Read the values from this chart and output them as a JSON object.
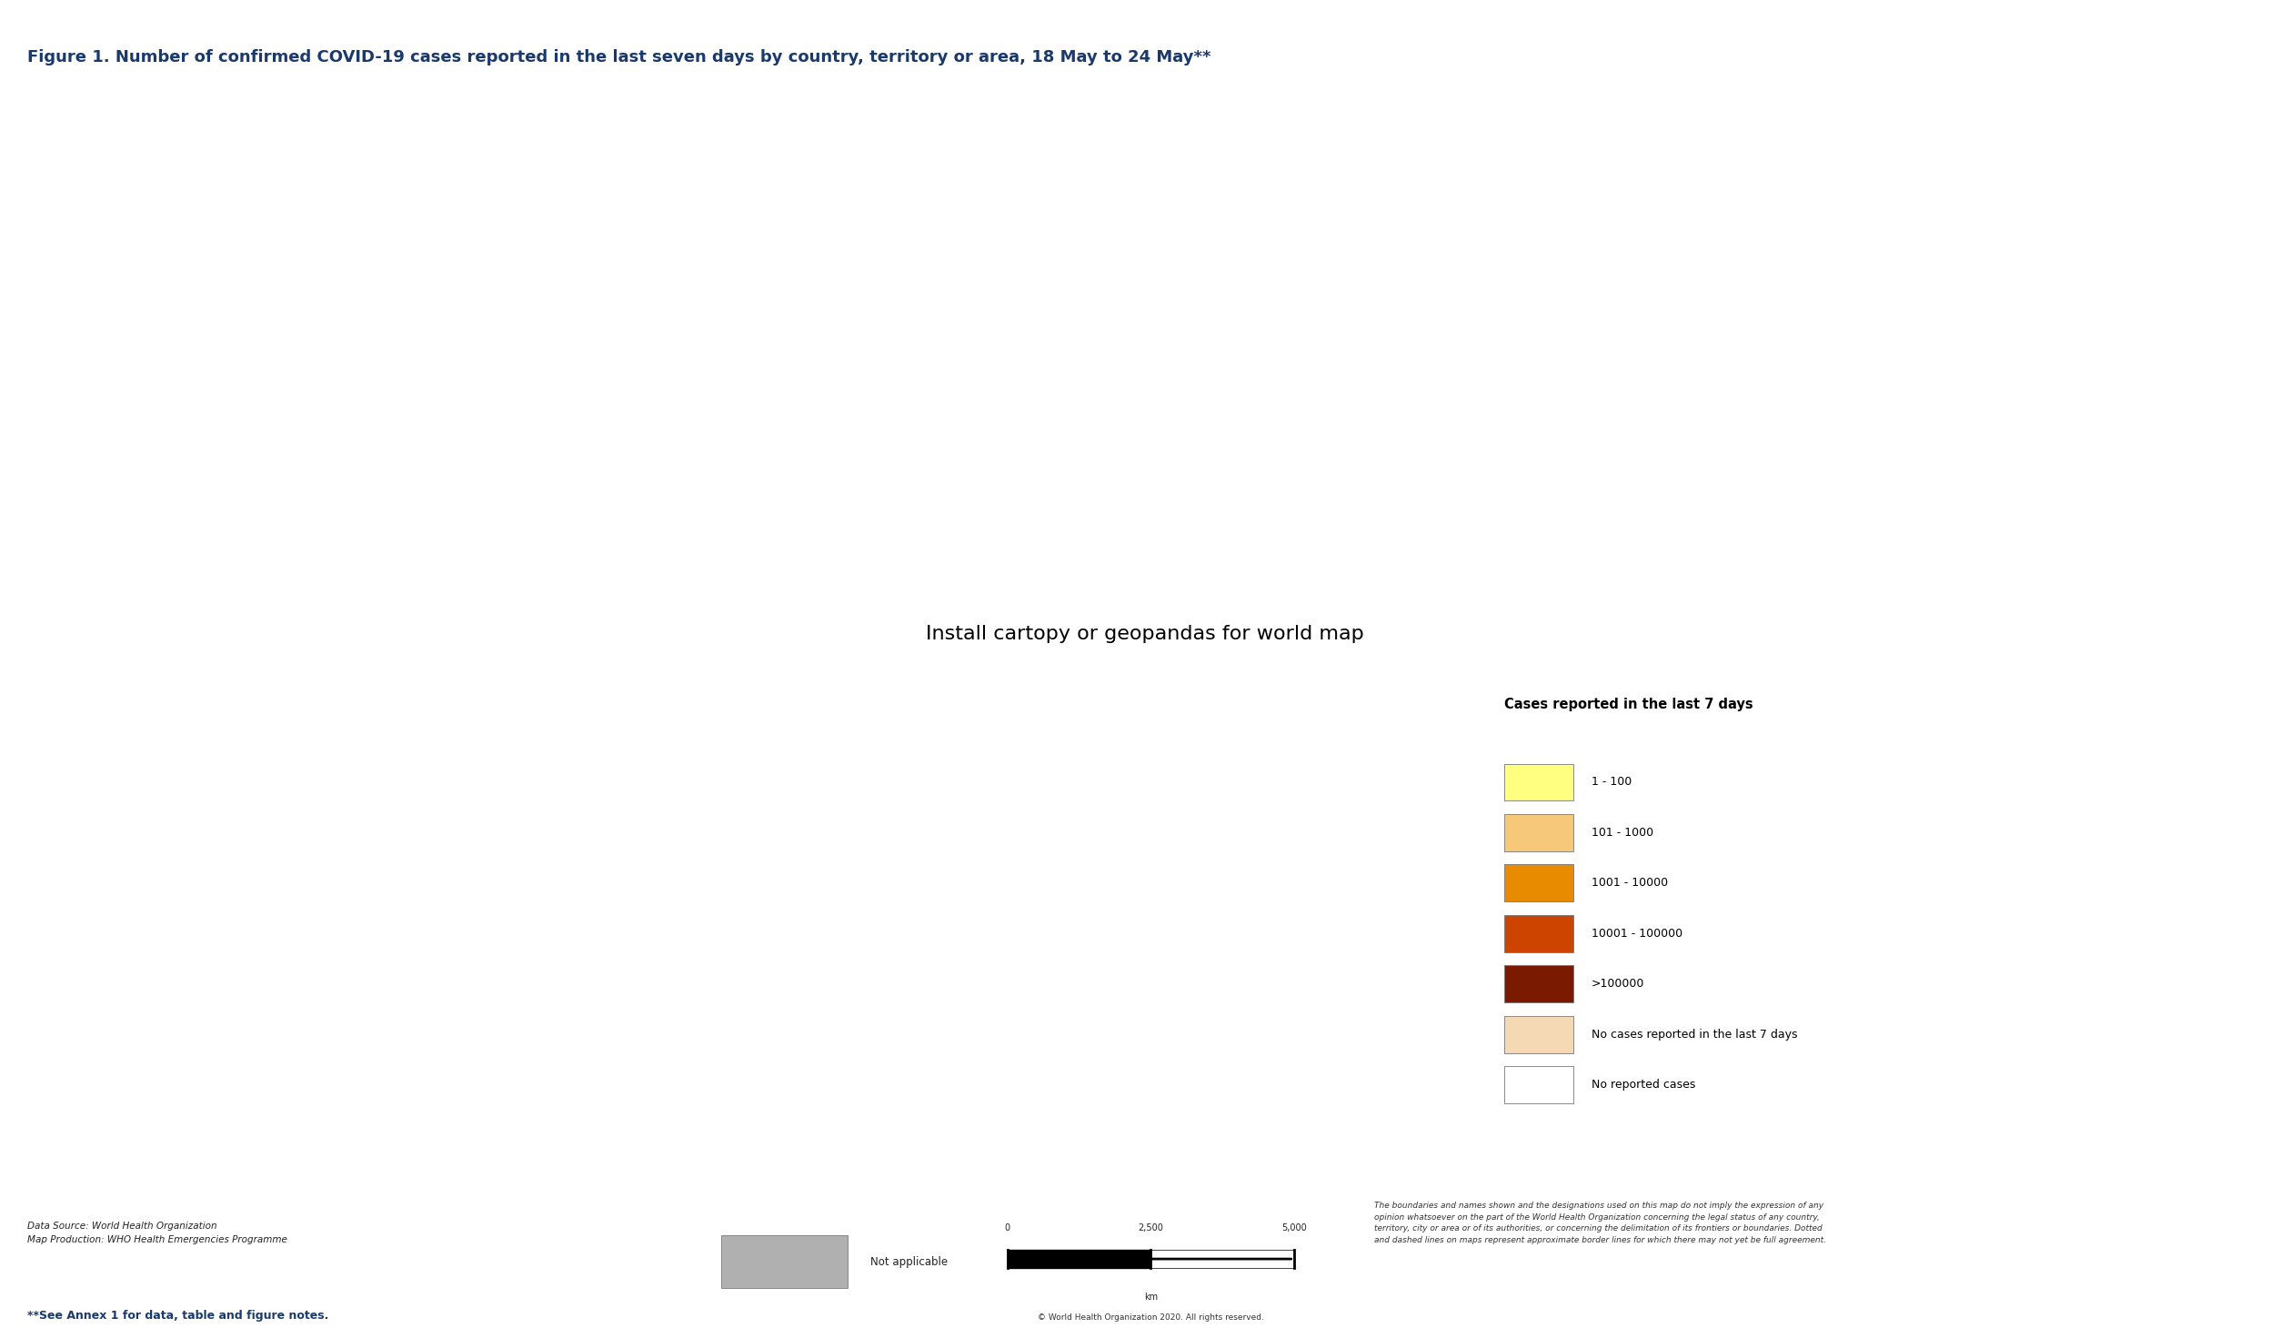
{
  "title": "Figure 1. Number of confirmed COVID-19 cases reported in the last seven days by country, territory or area, 18 May to 24 May**",
  "title_color": "#1a3a6b",
  "title_fontsize": 13,
  "background_color": "#aad3df",
  "land_default_color": "#f5d9b5",
  "no_cases_color": "#f5d9b5",
  "no_reported_color": "#ffffff",
  "legend_title": "Cases reported in the last 7 days",
  "legend_items": [
    {
      "label": "1 - 100",
      "color": "#ffff80"
    },
    {
      "label": "101 - 1000",
      "color": "#f5c87a"
    },
    {
      "label": "1001 - 10000",
      "color": "#e88b00"
    },
    {
      "label": "10001 - 100000",
      "color": "#cc4400"
    },
    {
      "label": ">100000",
      "color": "#7a1a00"
    },
    {
      "label": "No cases reported in the last 7 days",
      "color": "#f5d9b5"
    },
    {
      "label": "No reported cases",
      "color": "#ffffff"
    }
  ],
  "not_applicable_color": "#b0b0b0",
  "country_colors": {
    "United States of America": "#7a1a00",
    "Russia": "#cc4400",
    "Brazil": "#7a1a00",
    "United Kingdom": "#cc4400",
    "Spain": "#cc4400",
    "Italy": "#cc4400",
    "France": "#cc4400",
    "Germany": "#cc4400",
    "Turkey": "#cc4400",
    "India": "#cc4400",
    "Iran": "#cc4400",
    "Peru": "#cc4400",
    "Canada": "#cc4400",
    "China": "#f5c87a",
    "Saudi Arabia": "#cc4400",
    "Chile": "#cc4400",
    "Mexico": "#cc4400",
    "Pakistan": "#cc4400",
    "Belgium": "#e88b00",
    "Netherlands": "#e88b00",
    "Ecuador": "#e88b00",
    "Sweden": "#e88b00",
    "Switzerland": "#e88b00",
    "Bangladesh": "#e88b00",
    "Portugal": "#e88b00",
    "Qatar": "#e88b00",
    "Belarus": "#cc4400",
    "Singapore": "#e88b00",
    "United Arab Emirates": "#e88b00",
    "Argentina": "#e88b00",
    "Colombia": "#e88b00",
    "South Africa": "#e88b00",
    "Indonesia": "#e88b00",
    "Poland": "#e88b00",
    "Ukraine": "#e88b00",
    "Kuwait": "#e88b00",
    "Dominican Republic": "#e88b00",
    "Romania": "#e88b00",
    "Egypt": "#e88b00",
    "Israel": "#e88b00",
    "Japan": "#e88b00",
    "Austria": "#e88b00",
    "Philippines": "#e88b00",
    "Oman": "#e88b00",
    "Denmark": "#e88b00",
    "Czech Republic": "#e88b00",
    "Norway": "#e88b00",
    "Morocco": "#e88b00",
    "Nigeria": "#e88b00",
    "Ireland": "#e88b00",
    "Bolivia": "#e88b00",
    "Panama": "#e88b00",
    "Hungary": "#f5c87a",
    "Finland": "#f5c87a",
    "Serbia": "#f5c87a",
    "Moldova": "#f5c87a",
    "Kazakhstan": "#f5c87a",
    "Honduras": "#f5c87a",
    "Armenia": "#f5c87a",
    "Bahrain": "#e88b00",
    "Algeria": "#e88b00",
    "Ghana": "#e88b00",
    "Guatemala": "#e88b00",
    "Cameroon": "#e88b00",
    "Iraq": "#e88b00",
    "Afghanistan": "#e88b00",
    "Uzbekistan": "#e88b00",
    "North Macedonia": "#f5c87a",
    "Bosnia and Herzegovina": "#f5c87a",
    "Somalia": "#f5c87a",
    "Ethiopia": "#f5c87a",
    "Venezuela": "#f5c87a",
    "Tajikistan": "#e88b00",
    "Kyrgyzstan": "#f5c87a",
    "El Salvador": "#f5c87a",
    "Senegal": "#f5c87a",
    "Kenya": "#f5c87a",
    "Cote d'Ivoire": "#f5c87a",
    "Democratic Republic of the Congo": "#f5c87a",
    "Djibouti": "#f5c87a",
    "Cuba": "#f5c87a",
    "Tanzania": "#f5c87a",
    "Australia": "#f5c87a",
    "South Korea": "#f5c87a",
    "Sudan": "#f5c87a",
    "Guinea": "#f5c87a",
    "Gabon": "#f5c87a",
    "Niger": "#f5c87a",
    "Chad": "#ffff80",
    "Libya": "#f5c87a",
    "Haiti": "#f5c87a",
    "Azerbaijan": "#f5c87a",
    "Costa Rica": "#f5c87a",
    "Thailand": "#ffff80",
    "New Zealand": "#ffff80",
    "Tunisia": "#f5c87a",
    "Albania": "#f5c87a",
    "Bulgaria": "#f5c87a",
    "Croatia": "#f5c87a",
    "Greece": "#f5c87a",
    "Slovakia": "#f5c87a",
    "Estonia": "#ffff80",
    "Lithuania": "#ffff80",
    "Latvia": "#ffff80",
    "Luxembourg": "#ffff80",
    "Iceland": "#ffff80",
    "Jamaica": "#ffff80",
    "Lebanon": "#f5c87a",
    "Syria": "#f5c87a",
    "Zambia": "#f5c87a",
    "Burundi": "#f5c87a",
    "Eritrea": "#ffff80",
    "Namibia": "#ffff80",
    "Mozambique": "#ffff80",
    "Madagascar": "#ffff80",
    "Malawi": "#ffff80",
    "Zimbabwe": "#ffff80",
    "Uganda": "#f5c87a",
    "Rwanda": "#f5c87a",
    "Myanmar": "#ffff80",
    "Cambodia": "#ffff80",
    "Sri Lanka": "#ffff80",
    "Paraguay": "#f5c87a",
    "Uruguay": "#f5c87a",
    "Nepal": "#f5c87a",
    "Mali": "#f5c87a",
    "Togo": "#f5c87a",
    "Burkina Faso": "#f5c87a",
    "Benin": "#f5c87a",
    "Sierra Leone": "#f5c87a",
    "Liberia": "#f5c87a",
    "Mauritania": "#f5c87a",
    "Equatorial Guinea": "#f5c87a",
    "Republic of the Congo": "#f5c87a",
    "Central African Republic": "#f5c87a",
    "South Sudan": "#f5c87a",
    "Angola": "#f5c87a",
    "Botswana": "#ffff80",
    "Jordan": "#f5c87a",
    "Malaysia": "#f5c87a",
    "Mongolia": "#ffff80",
    "Georgia": "#f5c87a",
    "Suriname": "#ffff80",
    "Guyana": "#ffff80",
    "Trinidad and Tobago": "#ffff80",
    "Belize": "#ffff80",
    "Nicaragua": "#f5c87a",
    "Greenland": "#f5d9b5",
    "Western Sahara": "#f5d9b5",
    "Antarctica": "#ffffff",
    "Falkland Islands": "#ffff80",
    "Papua New Guinea": "#f5c87a",
    "Fiji": "#ffff80",
    "Timor-Leste": "#ffff80",
    "eSwatini": "#ffff80",
    "Lesotho": "#f5d9b5",
    "Cyprus": "#f5c87a",
    "North Korea": "#f5d9b5",
    "Laos": "#f5d9b5",
    "Vietnam": "#f5c87a",
    "Taiwan": "#f5c87a",
    "French Guiana": "#cc4400",
    "Puerto Rico": "#e88b00",
    "New Caledonia": "#ffff80",
    "French Polynesia": "#ffff80",
    "Reunion": "#e88b00",
    "Mayotte": "#e88b00",
    "Svalbard and Jan Mayen": "#f5d9b5",
    "Kosovo": "#f5c87a",
    "North Cyprus": "#f5c87a",
    "Somaliland": "#f5c87a",
    "Maldives": "#ffff80",
    "Brunei": "#ffff80",
    "Solomon Islands": "#ffff80",
    "Vanuatu": "#f5d9b5",
    "Tonga": "#f5d9b5",
    "Samoa": "#f5d9b5",
    "Kiribati": "#f5d9b5",
    "Marshall Islands": "#f5d9b5",
    "Micronesia": "#f5d9b5",
    "Palau": "#f5d9b5",
    "Nauru": "#f5d9b5",
    "Tuvalu": "#f5d9b5",
    "Guinea-Bissau": "#f5c87a",
    "Gambia": "#f5c87a",
    "Cape Verde": "#ffff80",
    "Sao Tome and Principe": "#f5c87a",
    "Comoros": "#ffff80",
    "Seychelles": "#ffff80",
    "Mauritius": "#ffff80",
    "Swaziland": "#ffff80"
  },
  "border_color": "#888888",
  "border_linewidth": 0.3,
  "footer_bg": "#d0d0d0",
  "footer_left": "Data Source: World Health Organization\nMap Production: WHO Health Emergencies Programme",
  "footer_center": "Not applicable",
  "footer_right": "The boundaries and names shown and the designations used on this map do not imply the expression of any\nopinion whatsoever on the part of the World Health Organization concerning the legal status of any country,\nterritory, city or area or of its authorities, or concerning the delimitation of its frontiers or boundaries. Dotted\nand dashed lines on maps represent approximate border lines for which there may not yet be full agreement.",
  "footnote": "**See Annex 1 for data, table and figure notes.",
  "copyright": "© World Health Organization 2020. All rights reserved.",
  "top_border_color": "#888888",
  "outer_bg": "#e8e8e8"
}
